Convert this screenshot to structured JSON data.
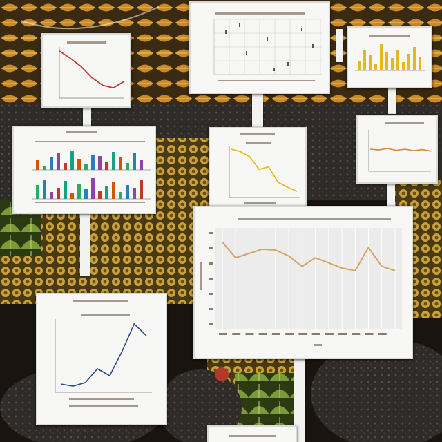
{
  "scene": {
    "description_colors": {
      "soil": "#1a1410",
      "foliage_gold": "#c98a2a",
      "foliage_yellow": "#d8b54a",
      "leaf_green": "#7c9a3a",
      "rock": "#3a3632",
      "berry": "#b0392b"
    }
  },
  "charts": {
    "line_orange": {
      "color": "#c0392b",
      "values": [
        92,
        78,
        62,
        40,
        25,
        20,
        33
      ]
    },
    "bars_multi": {
      "colors": [
        "#d35400",
        "#27ae60",
        "#2980b9",
        "#8e44ad",
        "#c0392b",
        "#16a085"
      ]
    },
    "line_yellow": {
      "color": "#e0c020",
      "values": [
        95,
        90,
        80,
        55,
        60,
        30,
        20,
        12
      ]
    },
    "bars_gold": {
      "color": "#e6b820"
    },
    "line_flat": {
      "color": "#d08a3a",
      "values": [
        50,
        48,
        52,
        47,
        50,
        46,
        49,
        45
      ]
    },
    "line_tan": {
      "color": "#d4a460",
      "values": [
        88,
        70,
        75,
        80,
        79,
        72,
        60,
        70,
        64,
        58,
        55,
        82,
        60,
        55
      ]
    },
    "line_blue": {
      "color": "#2c4a8a",
      "values": [
        8,
        5,
        10,
        30,
        20,
        55,
        95,
        78
      ]
    }
  }
}
